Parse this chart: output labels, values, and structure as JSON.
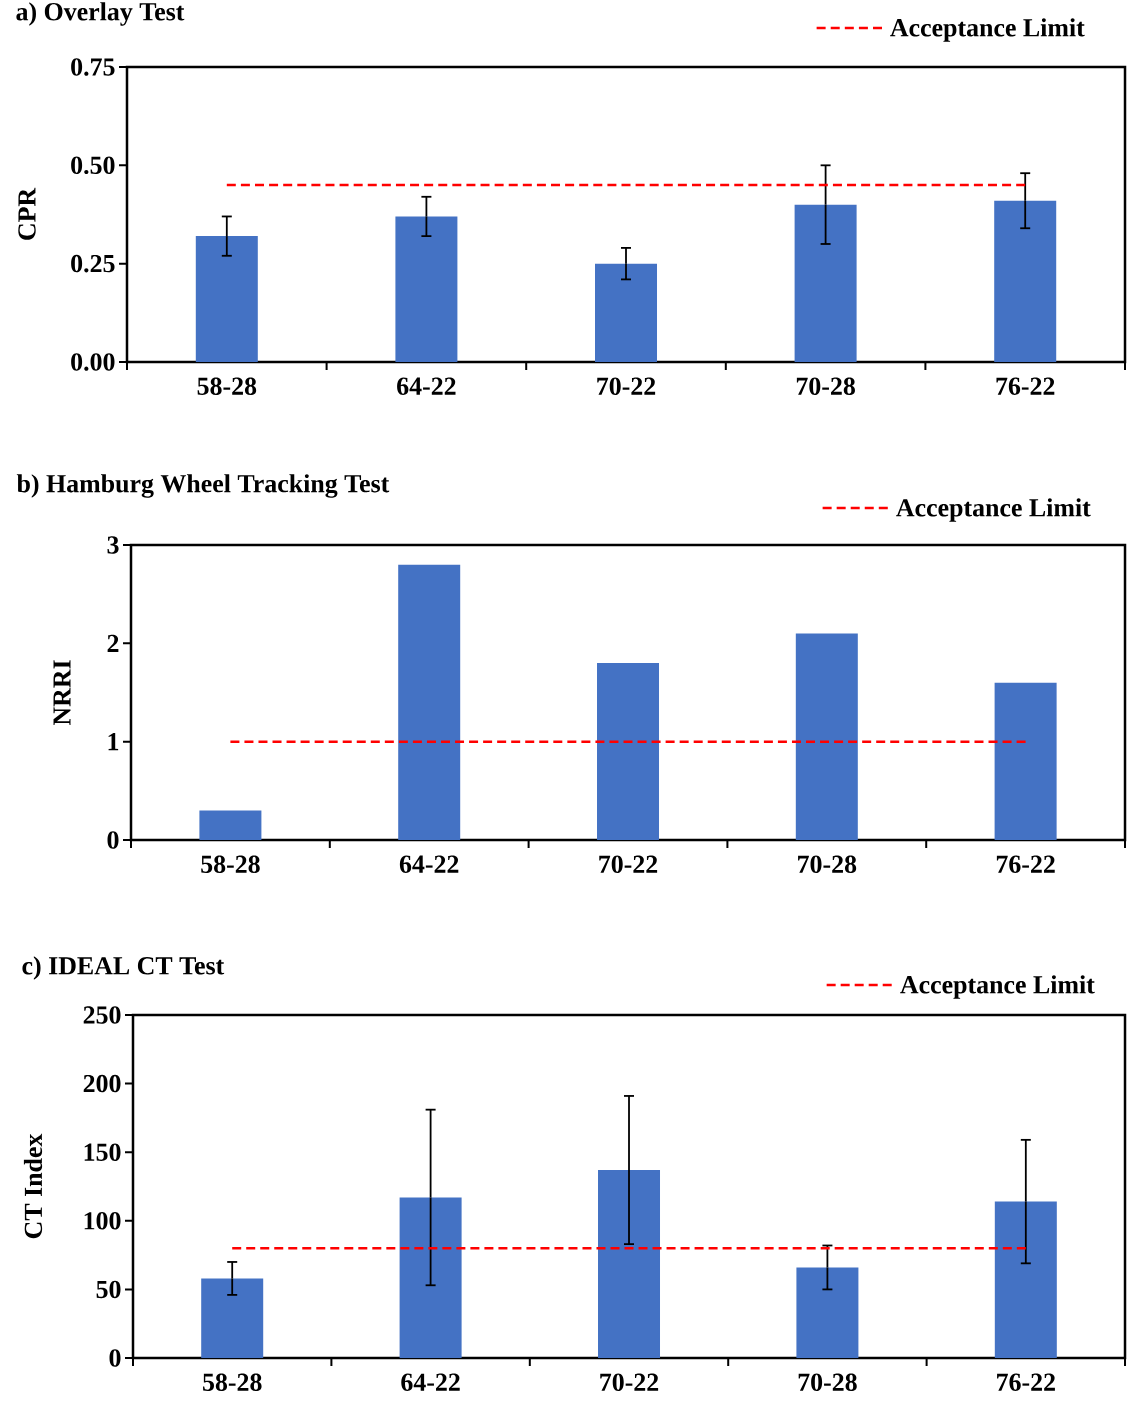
{
  "chart_data": [
    {
      "type": "bar",
      "title": "a) Overlay Test",
      "ylabel": "CPR",
      "categories": [
        "58-28",
        "64-22",
        "70-22",
        "70-28",
        "76-22"
      ],
      "series": [
        {
          "color": "#4472c4",
          "values": [
            0.32,
            0.37,
            0.25,
            0.4,
            0.41
          ],
          "errors": [
            0.05,
            0.05,
            0.04,
            0.1,
            0.07
          ]
        },
        {
          "type": "line",
          "name": "Acceptance Limit",
          "color": "#ff0000",
          "values": [
            0.45,
            0.45,
            0.45,
            0.45,
            0.45
          ],
          "line_style": "dashed",
          "marker": "none"
        }
      ],
      "ylim": [
        0,
        0.75
      ],
      "yticks": [
        {
          "value": 0,
          "label": "0.00"
        },
        {
          "value": 0.25,
          "label": "0.25"
        },
        {
          "value": 0.5,
          "label": "0.50"
        },
        {
          "value": 0.75,
          "label": "0.75"
        }
      ],
      "legend": "top right"
    },
    {
      "type": "bar",
      "title": "b) Hamburg Wheel Tracking Test",
      "ylabel": "NRRI",
      "categories": [
        "58-28",
        "64-22",
        "70-22",
        "70-28",
        "76-22"
      ],
      "series": [
        {
          "color": "#4472c4",
          "values": [
            0.3,
            2.8,
            1.8,
            2.1,
            1.6
          ]
        },
        {
          "type": "line",
          "name": "Acceptance Limit",
          "color": "#ff0000",
          "values": [
            1,
            1,
            1,
            1,
            1
          ],
          "line_style": "dashed",
          "marker": "none"
        }
      ],
      "ylim": [
        0,
        3
      ],
      "yticks": [
        0,
        1,
        2,
        3
      ],
      "legend": "top right"
    },
    {
      "type": "bar",
      "title": "c) IDEAL CT Test",
      "ylabel": "CT Index",
      "categories": [
        "58-28",
        "64-22",
        "70-22",
        "70-28",
        "76-22"
      ],
      "series": [
        {
          "color": "#4472c4",
          "values": [
            58,
            117,
            137,
            66,
            114
          ],
          "errors": [
            12,
            64,
            54,
            16,
            45
          ]
        },
        {
          "type": "line",
          "name": "Acceptance Limit",
          "color": "#ff0000",
          "values": [
            80,
            80,
            80,
            80,
            80
          ],
          "line_style": "dashed",
          "marker": "none"
        }
      ],
      "ylim": [
        0,
        250
      ],
      "yticks": [
        0,
        50,
        100,
        150,
        200,
        250
      ],
      "legend": "top right"
    }
  ]
}
